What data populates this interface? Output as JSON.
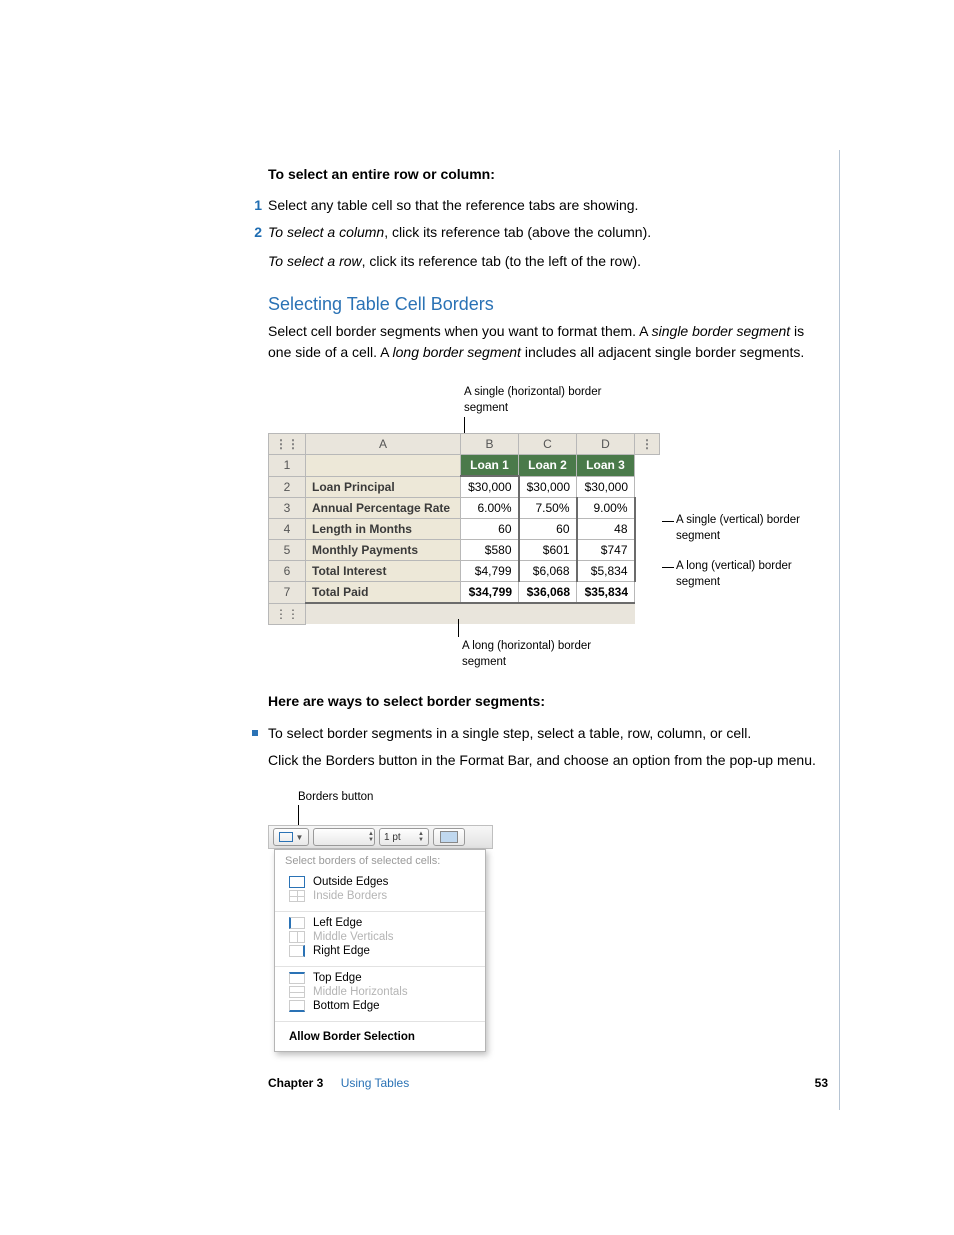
{
  "intro": {
    "heading": "To select an entire row or column:",
    "step1_num": "1",
    "step1": "Select any table cell so that the reference tabs are showing.",
    "step2_num": "2",
    "step2_lead": "To select a column",
    "step2_rest": ", click its reference tab (above the column).",
    "step2b_lead": "To select a row",
    "step2b_rest": ", click its reference tab (to the left of the row)."
  },
  "section": {
    "title": "Selecting Table Cell Borders",
    "p1a": "Select cell border segments when you want to format them. A ",
    "p1b": "single border segment",
    "p1c": " is one side of a cell. A ",
    "p1d": "long border segment",
    "p1e": " includes all adjacent single border segments."
  },
  "callouts": {
    "top": "A single (horizontal) border segment",
    "right1": "A single (vertical) border segment",
    "right2": "A long (vertical) border segment",
    "bottom": "A long (horizontal) border segment"
  },
  "spreadsheet": {
    "cols": [
      "A",
      "B",
      "C",
      "D"
    ],
    "row_nums": [
      "1",
      "2",
      "3",
      "4",
      "5",
      "6",
      "7"
    ],
    "loan_headers": [
      "Loan 1",
      "Loan 2",
      "Loan 3"
    ],
    "rows": [
      {
        "label": "Loan Principal",
        "vals": [
          "$30,000",
          "$30,000",
          "$30,000"
        ]
      },
      {
        "label": "Annual Percentage Rate",
        "vals": [
          "6.00%",
          "7.50%",
          "9.00%"
        ]
      },
      {
        "label": "Length in Months",
        "vals": [
          "60",
          "60",
          "48"
        ]
      },
      {
        "label": "Monthly Payments",
        "vals": [
          "$580",
          "$601",
          "$747"
        ]
      },
      {
        "label": "Total Interest",
        "vals": [
          "$4,799",
          "$6,068",
          "$5,834"
        ]
      }
    ],
    "total": {
      "label": "Total Paid",
      "vals": [
        "$34,799",
        "$36,068",
        "$35,834"
      ]
    }
  },
  "ways": {
    "heading": "Here are ways to select border segments:",
    "bullet": "To select border segments in a single step, select a table, row, column, or cell.",
    "p": "Click the Borders button in the Format Bar, and choose an option from the pop-up menu."
  },
  "popup": {
    "label": "Borders button",
    "pt": "1 pt",
    "header": "Select borders of selected cells:",
    "g1": [
      {
        "icon": "ico-outside",
        "text": "Outside Edges",
        "disabled": false
      },
      {
        "icon": "ico-inside",
        "text": "Inside Borders",
        "disabled": true
      }
    ],
    "g2": [
      {
        "icon": "ico-left",
        "text": "Left Edge",
        "disabled": false
      },
      {
        "icon": "ico-midv",
        "text": "Middle Verticals",
        "disabled": true
      },
      {
        "icon": "ico-right",
        "text": "Right Edge",
        "disabled": false
      }
    ],
    "g3": [
      {
        "icon": "ico-top",
        "text": "Top Edge",
        "disabled": false
      },
      {
        "icon": "ico-midh",
        "text": "Middle Horizontals",
        "disabled": true
      },
      {
        "icon": "ico-bottom",
        "text": "Bottom Edge",
        "disabled": false
      }
    ],
    "footer": "Allow Border Selection"
  },
  "footer": {
    "chapter": "Chapter 3",
    "title": "Using Tables",
    "page": "53"
  }
}
